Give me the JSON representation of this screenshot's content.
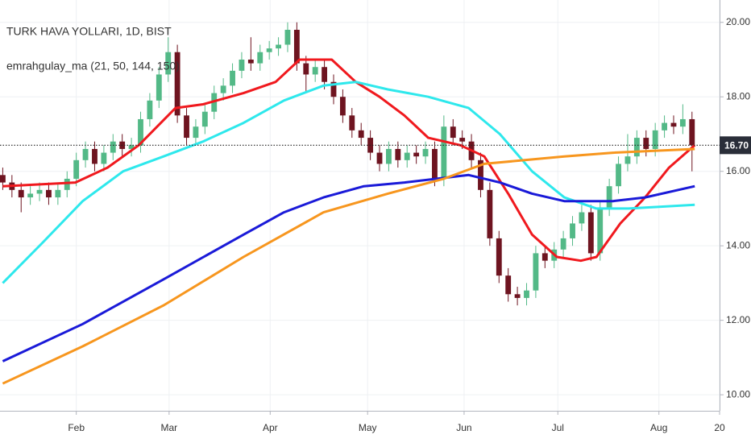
{
  "chart_data": {
    "type": "candlestick",
    "title": "TURK HAVA YOLLARI, 1D, BIST",
    "subtitle": "emrahgulay_ma (21, 50, 144, 150)",
    "up_color": "#53b987",
    "down_color": "#6e1420",
    "open": [
      15.9,
      15.7,
      15.5,
      15.3,
      15.4,
      15.5,
      15.3,
      15.5,
      15.8,
      16.3,
      16.6,
      16.2,
      16.5,
      16.8,
      16.6,
      16.7,
      17.4,
      17.9,
      18.6,
      19.2,
      17.5,
      16.9,
      17.2,
      17.6,
      18.1,
      18.3,
      18.7,
      19.0,
      18.9,
      19.2,
      19.3,
      19.4,
      19.8,
      18.9,
      18.6,
      18.8,
      18.4,
      18.0,
      17.5,
      17.1,
      16.9,
      16.5,
      16.2,
      16.6,
      16.3,
      16.5,
      16.4,
      16.6,
      15.8,
      17.2,
      16.9,
      16.8,
      16.3,
      15.5,
      14.2,
      13.2,
      12.7,
      12.6,
      12.8,
      13.8,
      13.6,
      13.9,
      14.2,
      14.6,
      14.9,
      13.8,
      15.0,
      15.6,
      16.2,
      16.4,
      16.9,
      16.6,
      17.1,
      17.3,
      17.2,
      17.4
    ],
    "high": [
      16.1,
      15.9,
      15.7,
      15.6,
      15.7,
      15.7,
      15.7,
      16.0,
      16.5,
      16.8,
      16.8,
      16.7,
      17.0,
      17.0,
      16.9,
      17.6,
      18.1,
      18.8,
      19.6,
      19.4,
      17.7,
      17.4,
      17.8,
      18.3,
      18.5,
      18.9,
      19.2,
      19.6,
      19.4,
      19.5,
      19.6,
      20.0,
      20.0,
      19.1,
      19.0,
      19.0,
      18.6,
      18.2,
      17.7,
      17.3,
      17.1,
      16.7,
      16.8,
      16.8,
      16.7,
      16.7,
      16.8,
      16.8,
      17.5,
      17.4,
      17.1,
      17.0,
      16.5,
      15.7,
      14.4,
      13.4,
      12.9,
      13.0,
      14.0,
      14.0,
      14.1,
      14.4,
      14.8,
      15.1,
      15.1,
      15.2,
      15.8,
      16.4,
      17.0,
      17.1,
      17.1,
      17.3,
      17.5,
      17.5,
      17.8,
      17.6
    ],
    "low": [
      15.5,
      15.3,
      14.9,
      15.1,
      15.2,
      15.1,
      15.1,
      15.3,
      15.6,
      16.1,
      16.0,
      16.0,
      16.3,
      16.4,
      16.4,
      16.5,
      17.2,
      17.7,
      18.4,
      17.3,
      16.7,
      16.7,
      17.0,
      17.4,
      17.9,
      18.1,
      18.5,
      18.7,
      18.7,
      19.0,
      19.1,
      19.2,
      18.7,
      18.1,
      18.4,
      18.2,
      17.8,
      17.3,
      16.9,
      16.7,
      16.3,
      16.0,
      16.0,
      16.1,
      16.1,
      16.2,
      16.2,
      15.6,
      15.6,
      16.7,
      16.6,
      16.1,
      15.3,
      14.0,
      13.0,
      12.5,
      12.4,
      12.4,
      12.6,
      13.4,
      13.4,
      13.7,
      14.0,
      14.4,
      13.6,
      13.6,
      14.8,
      15.4,
      16.0,
      16.2,
      16.4,
      16.4,
      16.9,
      17.0,
      17.0,
      16.0
    ],
    "close": [
      15.7,
      15.5,
      15.3,
      15.4,
      15.5,
      15.3,
      15.5,
      15.8,
      16.3,
      16.6,
      16.2,
      16.5,
      16.8,
      16.6,
      16.7,
      17.4,
      17.9,
      18.6,
      19.2,
      17.5,
      16.9,
      17.2,
      17.6,
      18.1,
      18.3,
      18.7,
      19.0,
      18.9,
      19.2,
      19.3,
      19.4,
      19.8,
      18.9,
      18.6,
      18.8,
      18.4,
      18.0,
      17.5,
      17.1,
      16.9,
      16.5,
      16.2,
      16.6,
      16.3,
      16.5,
      16.4,
      16.6,
      15.8,
      17.2,
      16.9,
      16.8,
      16.3,
      15.5,
      14.2,
      13.2,
      12.7,
      12.6,
      12.8,
      13.8,
      13.6,
      13.9,
      14.2,
      14.6,
      14.9,
      13.8,
      15.0,
      15.6,
      16.2,
      16.4,
      16.9,
      16.6,
      17.1,
      17.3,
      17.2,
      17.4,
      16.7
    ],
    "lines": [
      {
        "color": "#f0191e",
        "x": [
          0,
          7.9,
          11.4,
          14.8,
          18.8,
          21.8,
          26.2,
          29.7,
          32.3,
          35.8,
          38.4,
          41.0,
          43.7,
          46.3,
          49.8,
          52.4,
          55.0,
          57.6,
          60.3,
          62.9,
          64.6,
          67.2,
          69.9,
          72.5,
          75.3
        ],
        "values": [
          15.6,
          15.7,
          16.1,
          16.7,
          17.7,
          17.8,
          18.1,
          18.4,
          19.0,
          19.0,
          18.4,
          18.0,
          17.5,
          16.9,
          16.7,
          16.4,
          15.4,
          14.3,
          13.7,
          13.6,
          13.7,
          14.6,
          15.3,
          16.1,
          16.7
        ]
      },
      {
        "color": "#2ee8ec",
        "x": [
          0,
          4.4,
          8.7,
          13.1,
          17.5,
          21.8,
          26.2,
          30.6,
          34.9,
          38.4,
          41.9,
          46.3,
          50.7,
          54.1,
          57.6,
          61.1,
          64.6,
          68.1,
          75.3
        ],
        "values": [
          13.0,
          14.1,
          15.2,
          16.0,
          16.4,
          16.8,
          17.3,
          17.9,
          18.3,
          18.4,
          18.2,
          18.0,
          17.7,
          17.0,
          16.0,
          15.3,
          15.0,
          15.0,
          15.1
        ]
      },
      {
        "color": "#1a1ad8",
        "x": [
          0,
          8.7,
          17.5,
          26.2,
          30.6,
          34.9,
          39.3,
          43.7,
          50.7,
          54.1,
          57.6,
          61.1,
          66.4,
          69.9,
          75.3
        ],
        "values": [
          10.9,
          11.9,
          13.1,
          14.3,
          14.9,
          15.3,
          15.6,
          15.7,
          15.9,
          15.7,
          15.4,
          15.2,
          15.2,
          15.3,
          15.6
        ]
      },
      {
        "color": "#f7961e",
        "x": [
          0,
          8.7,
          17.5,
          26.2,
          34.9,
          41.9,
          48.0,
          52.4,
          56.8,
          61.1,
          66.4,
          75.3
        ],
        "values": [
          10.3,
          11.3,
          12.4,
          13.7,
          14.9,
          15.4,
          15.8,
          16.2,
          16.3,
          16.4,
          16.5,
          16.6
        ]
      }
    ],
    "last_price": {
      "value": 16.7,
      "label": "16.70"
    },
    "xlim": [
      -0.3,
      78
    ],
    "xticks": [
      {
        "value": 8.0,
        "label": "Feb"
      },
      {
        "value": 18.1,
        "label": "Mar"
      },
      {
        "value": 29.1,
        "label": "Apr"
      },
      {
        "value": 39.7,
        "label": "May"
      },
      {
        "value": 50.2,
        "label": "Jun"
      },
      {
        "value": 60.4,
        "label": "Jul"
      },
      {
        "value": 71.4,
        "label": "Aug"
      },
      {
        "value": 78,
        "label": "20"
      }
    ],
    "ylim": [
      9.57,
      20.6
    ],
    "yticks": [
      {
        "value": 10,
        "label": "10.00"
      },
      {
        "value": 12,
        "label": "12.00"
      },
      {
        "value": 14,
        "label": "14.00"
      },
      {
        "value": 16,
        "label": "16.00"
      },
      {
        "value": 18,
        "label": "18.00"
      },
      {
        "value": 20,
        "label": "20.00"
      }
    ],
    "grid": true
  }
}
